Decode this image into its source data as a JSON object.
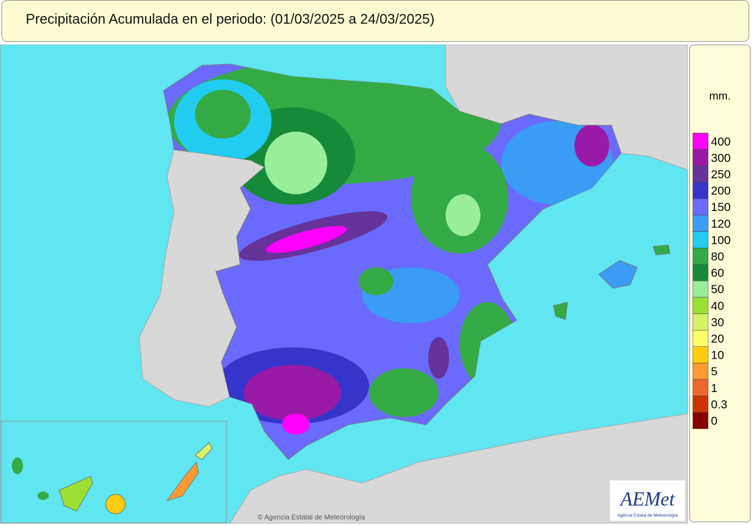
{
  "title": "Precipitación Acumulada en el periodo:  (01/03/2025 a 24/03/2025)",
  "legend": {
    "unit": "mm.",
    "items": [
      {
        "label": 400,
        "color": "#ff00ff"
      },
      {
        "label": 300,
        "color": "#9a1aa8"
      },
      {
        "label": 250,
        "color": "#66339a"
      },
      {
        "label": 200,
        "color": "#3535cc"
      },
      {
        "label": 150,
        "color": "#6a6aff"
      },
      {
        "label": 120,
        "color": "#3b9cf5"
      },
      {
        "label": 100,
        "color": "#22ccf0"
      },
      {
        "label": 80,
        "color": "#33aa44"
      },
      {
        "label": 60,
        "color": "#178a3a"
      },
      {
        "label": 50,
        "color": "#99ee99"
      },
      {
        "label": 40,
        "color": "#99e033"
      },
      {
        "label": 30,
        "color": "#d6f266"
      },
      {
        "label": 20,
        "color": "#ffff66"
      },
      {
        "label": 10,
        "color": "#ffcc11"
      },
      {
        "label": 5,
        "color": "#ff9a33"
      },
      {
        "label": 1,
        "color": "#ee6630"
      },
      {
        "label": 0.3,
        "color": "#cc3300"
      },
      {
        "label": 0,
        "color": "#880000"
      }
    ]
  },
  "logo": {
    "name": "AEMet",
    "subtitle": "Agencia Estatal de Meteorología"
  },
  "credit": "© Agencia Estatal de Meteorología"
}
